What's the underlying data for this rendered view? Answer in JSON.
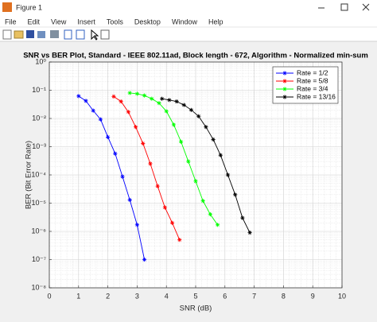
{
  "window": {
    "title": "Figure 1",
    "menu": [
      "File",
      "Edit",
      "View",
      "Insert",
      "Tools",
      "Desktop",
      "Window",
      "Help"
    ]
  },
  "chart_data": {
    "type": "line",
    "title": "SNR vs BER Plot, Standard - IEEE 802.11ad, Block length - 672, Algorithm - Normalized min-sum",
    "x_label": "SNR (dB)",
    "y_label": "BER (Bit Error Rate)",
    "xlim": [
      0,
      10
    ],
    "xticks": [
      0,
      1,
      2,
      3,
      4,
      5,
      6,
      7,
      8,
      9,
      10
    ],
    "ylim": [
      1e-08,
      1
    ],
    "y_scale": "log",
    "yticks": [
      {
        "value": 1e-08,
        "label": "10⁻⁸"
      },
      {
        "value": 1e-07,
        "label": "10⁻⁷"
      },
      {
        "value": 1e-06,
        "label": "10⁻⁶"
      },
      {
        "value": 1e-05,
        "label": "10⁻⁵"
      },
      {
        "value": 0.0001,
        "label": "10⁻⁴"
      },
      {
        "value": 0.001,
        "label": "10⁻³"
      },
      {
        "value": 0.01,
        "label": "10⁻²"
      },
      {
        "value": 0.1,
        "label": "10⁻¹"
      },
      {
        "value": 1,
        "label": "10⁰"
      }
    ],
    "grid": true,
    "minor_grid": true,
    "legend": "upper right",
    "series": [
      {
        "name": "Rate = 1/2",
        "color": "#0000ff",
        "x": [
          1.0,
          1.25,
          1.5,
          1.75,
          2.0,
          2.25,
          2.5,
          2.75,
          3.0,
          3.25
        ],
        "values": [
          0.062,
          0.042,
          0.019,
          0.0093,
          0.0022,
          0.00057,
          8.7e-05,
          1.3e-05,
          1.7e-06,
          1e-07
        ]
      },
      {
        "name": "Rate = 5/8",
        "color": "#ff0000",
        "x": [
          2.2,
          2.45,
          2.7,
          2.95,
          3.2,
          3.45,
          3.7,
          3.95,
          4.2,
          4.45
        ],
        "values": [
          0.06,
          0.04,
          0.017,
          0.005,
          0.0013,
          0.00025,
          4e-05,
          7e-06,
          2e-06,
          5e-07
        ]
      },
      {
        "name": "Rate = 3/4",
        "color": "#00ff00",
        "x": [
          2.75,
          3.0,
          3.25,
          3.5,
          3.75,
          4.0,
          4.25,
          4.5,
          4.75,
          5.0,
          5.25,
          5.5,
          5.75
        ],
        "values": [
          0.08,
          0.075,
          0.065,
          0.05,
          0.035,
          0.018,
          0.006,
          0.0015,
          0.0003,
          6e-05,
          1.2e-05,
          4e-06,
          1.7e-06
        ]
      },
      {
        "name": "Rate = 13/16",
        "color": "#000000",
        "x": [
          3.85,
          4.1,
          4.35,
          4.6,
          4.85,
          5.1,
          5.35,
          5.6,
          5.85,
          6.1,
          6.35,
          6.6,
          6.85
        ],
        "values": [
          0.05,
          0.045,
          0.04,
          0.03,
          0.02,
          0.012,
          0.005,
          0.0018,
          0.0005,
          0.0001,
          2e-05,
          3e-06,
          9e-07
        ]
      }
    ]
  }
}
